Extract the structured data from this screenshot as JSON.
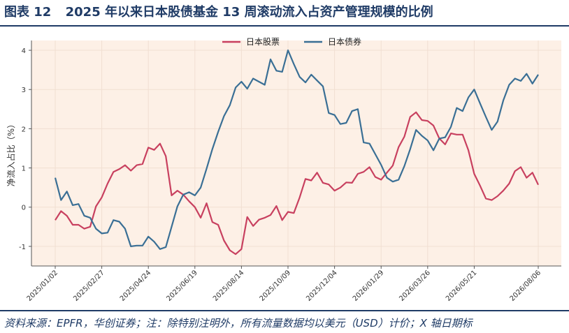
{
  "figure": {
    "label": "图表",
    "number": "12",
    "title": "2025 年以来日本股债基金 13 周滚动流入占资产管理规模的比例",
    "source": "资料来源：EPFR，华创证券；注：除特别注明外，所有流量数据均以美元（USD）计价；X 轴日期标"
  },
  "chart_data": {
    "type": "line",
    "title": "",
    "xlabel": "",
    "ylabel": "净流入占比（%）",
    "ylim": [
      -1.5,
      4.25
    ],
    "yticks": [
      -1,
      0,
      1,
      2,
      3,
      4
    ],
    "xticks": [
      "2025/01/02",
      "2025/02/27",
      "2025/04/24",
      "2025/06/19",
      "2025/08/14",
      "2025/10/09",
      "2025/12/04",
      "2026/01/29",
      "2026/03/26",
      "2026/05/21",
      "2026/08/06"
    ],
    "xtick_positions": [
      0,
      8,
      16,
      24,
      32,
      40,
      48,
      56,
      64,
      72,
      83
    ],
    "grid": true,
    "legend_position": "top-center",
    "colors": {
      "stock": "#c8405f",
      "bond": "#3a6f95",
      "background": "#fdf0e6"
    },
    "series": [
      {
        "name": "日本股票",
        "values": [
          -0.33,
          -0.1,
          -0.22,
          -0.45,
          -0.45,
          -0.55,
          -0.5,
          0.02,
          0.25,
          0.6,
          0.9,
          0.97,
          1.07,
          0.93,
          1.07,
          1.1,
          1.52,
          1.46,
          1.62,
          1.3,
          0.3,
          0.42,
          0.32,
          0.15,
          0.0,
          -0.27,
          0.1,
          -0.38,
          -0.45,
          -0.85,
          -1.1,
          -1.2,
          -1.07,
          -0.25,
          -0.48,
          -0.32,
          -0.27,
          -0.2,
          0.03,
          -0.33,
          -0.12,
          -0.15,
          0.25,
          0.72,
          0.68,
          0.88,
          0.62,
          0.58,
          0.42,
          0.5,
          0.63,
          0.62,
          0.85,
          0.9,
          1.02,
          0.77,
          0.7,
          0.88,
          1.06,
          1.53,
          1.8,
          2.3,
          2.42,
          2.22,
          2.2,
          2.08,
          1.75,
          1.6,
          1.88,
          1.85,
          1.85,
          1.45,
          0.85,
          0.55,
          0.22,
          0.18,
          0.28,
          0.42,
          0.6,
          0.92,
          1.02,
          0.75,
          0.88,
          0.57
        ]
      },
      {
        "name": "日本债券",
        "values": [
          0.75,
          0.18,
          0.4,
          0.05,
          0.08,
          -0.22,
          -0.27,
          -0.55,
          -0.67,
          -0.65,
          -0.33,
          -0.37,
          -0.55,
          -1.0,
          -0.98,
          -0.98,
          -0.75,
          -0.88,
          -1.07,
          -1.02,
          -0.5,
          0.02,
          0.32,
          0.38,
          0.3,
          0.5,
          0.98,
          1.48,
          1.92,
          2.32,
          2.6,
          3.05,
          3.2,
          3.02,
          3.28,
          3.2,
          3.12,
          3.77,
          3.48,
          3.45,
          4.0,
          3.65,
          3.32,
          3.18,
          3.38,
          3.23,
          3.08,
          2.4,
          2.35,
          2.12,
          2.15,
          2.45,
          2.5,
          1.65,
          1.62,
          1.35,
          1.08,
          0.75,
          0.65,
          0.7,
          1.05,
          1.48,
          1.97,
          1.82,
          1.7,
          1.45,
          1.75,
          1.78,
          2.05,
          2.53,
          2.45,
          2.8,
          3.0,
          2.65,
          2.3,
          1.97,
          2.18,
          2.72,
          3.12,
          3.28,
          3.22,
          3.4,
          3.15,
          3.38
        ]
      }
    ]
  }
}
